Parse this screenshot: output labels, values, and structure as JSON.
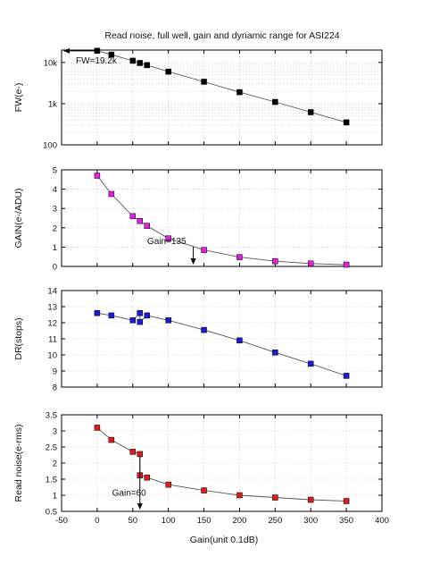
{
  "title": "Read noise, full well, gain and dynamic range for ASI224",
  "xlabel": "Gain(unit 0.1dB)",
  "chart_data": [
    {
      "type": "scatter",
      "name": "fw",
      "ylabel": "FW(e-)",
      "yscale": "log",
      "ylim": [
        100,
        20000
      ],
      "yticks": [
        100,
        1000,
        10000
      ],
      "ytick_labels": [
        "100",
        "1k",
        "10k"
      ],
      "color": "#000000",
      "x": [
        0,
        20,
        50,
        60,
        70,
        100,
        150,
        200,
        250,
        300,
        350
      ],
      "y": [
        19200,
        15500,
        11000,
        9700,
        8600,
        6000,
        3400,
        1900,
        1100,
        620,
        350
      ],
      "annotation": {
        "text": "FW=19.2k",
        "x": 0,
        "y": 19200
      }
    },
    {
      "type": "scatter",
      "name": "gain",
      "ylabel": "GAIN(e-/ADU)",
      "ylim": [
        0,
        5
      ],
      "yticks": [
        0,
        1,
        2,
        3,
        4,
        5
      ],
      "color": "#e020e0",
      "x": [
        0,
        20,
        50,
        60,
        70,
        100,
        150,
        200,
        250,
        300,
        350
      ],
      "y": [
        4.7,
        3.75,
        2.6,
        2.35,
        2.1,
        1.45,
        0.85,
        0.48,
        0.27,
        0.15,
        0.09
      ],
      "annotation": {
        "text": "Gain=135",
        "x": 135,
        "y": 0
      }
    },
    {
      "type": "scatter",
      "name": "dr",
      "ylabel": "DR(stops)",
      "ylim": [
        8,
        14
      ],
      "yticks": [
        8,
        9,
        10,
        11,
        12,
        13,
        14
      ],
      "color": "#1c1cd0",
      "x": [
        0,
        20,
        50,
        60,
        60,
        70,
        100,
        150,
        200,
        250,
        300,
        350
      ],
      "y": [
        12.6,
        12.45,
        12.15,
        12.6,
        12.05,
        12.45,
        12.15,
        11.55,
        10.9,
        10.15,
        9.45,
        8.7
      ]
    },
    {
      "type": "scatter",
      "name": "read-noise",
      "ylabel": "Read noise(e-rms)",
      "ylim": [
        0.5,
        3.5
      ],
      "yticks": [
        0.5,
        1.0,
        1.5,
        2.0,
        2.5,
        3.0,
        3.5
      ],
      "color": "#dd1c1c",
      "x": [
        0,
        20,
        50,
        60,
        60,
        70,
        100,
        150,
        200,
        250,
        300,
        350
      ],
      "y": [
        3.1,
        2.72,
        2.35,
        2.28,
        1.62,
        1.55,
        1.33,
        1.15,
        1.0,
        0.93,
        0.86,
        0.82
      ],
      "annotation": {
        "text": "Gain=60",
        "x": 60,
        "y": 0.5
      }
    }
  ],
  "x_axis": {
    "xlim": [
      -50,
      400
    ],
    "xticks": [
      -50,
      0,
      50,
      100,
      150,
      200,
      250,
      300,
      350,
      400
    ]
  }
}
